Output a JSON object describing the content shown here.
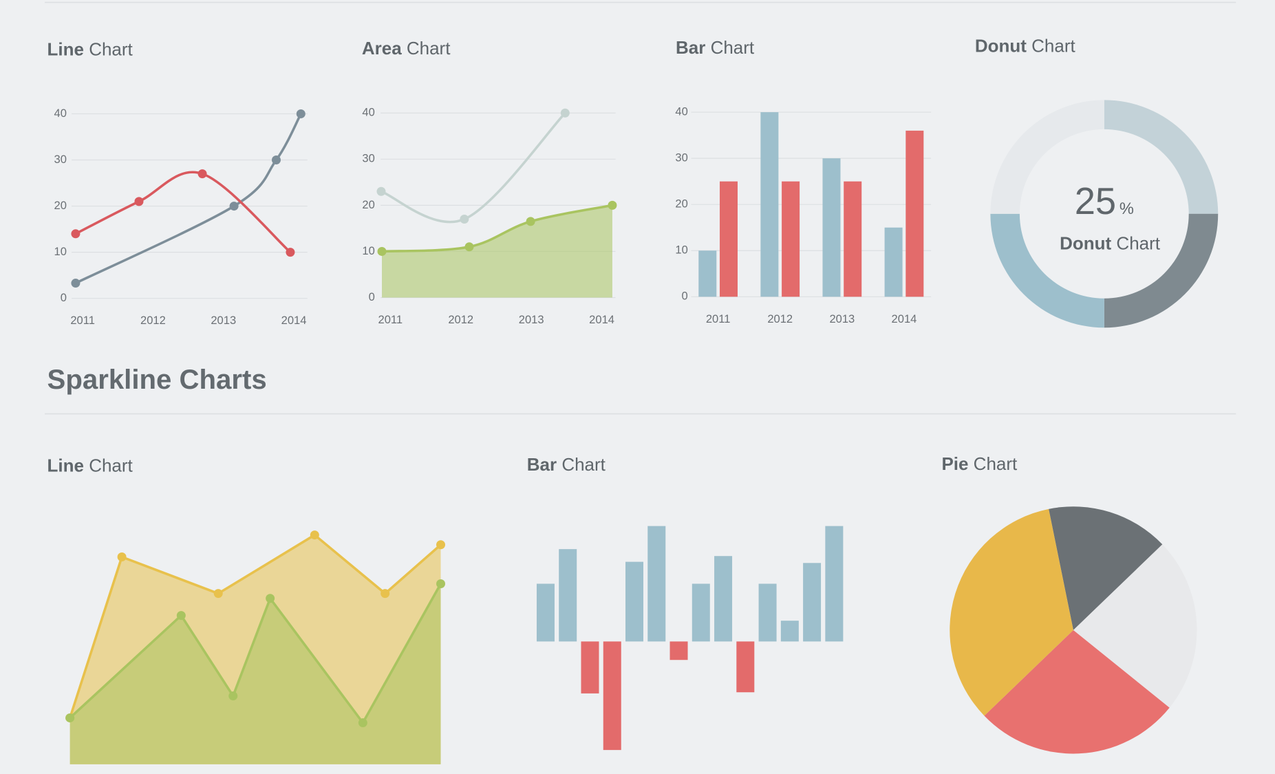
{
  "heading": "Sparkline Charts",
  "chart_data": [
    {
      "type": "line",
      "title": "Line Chart",
      "smooth": true,
      "grid": true,
      "xlim": [
        2010.75,
        2014.25
      ],
      "xticks": [
        2011,
        2012,
        2013,
        2014
      ],
      "ylim": [
        0,
        40
      ],
      "yticks": [
        0,
        10,
        20,
        30,
        40
      ],
      "series": [
        {
          "color": "#7d8e99",
          "x": [
            2010.9,
            2013.15,
            2013.75,
            2014.1
          ],
          "values": [
            3.3,
            20,
            30,
            40
          ]
        },
        {
          "color": "#d9595e",
          "x": [
            2010.9,
            2011.8,
            2012.7,
            2013.95
          ],
          "values": [
            14,
            21,
            27,
            10
          ]
        }
      ]
    },
    {
      "type": "area",
      "title": "Area Chart",
      "smooth": true,
      "grid": true,
      "xlim": [
        2010.8,
        2014.2
      ],
      "xticks": [
        2011,
        2012,
        2013,
        2014
      ],
      "ylim": [
        0,
        40
      ],
      "yticks": [
        0,
        10,
        20,
        30,
        40
      ],
      "series": [
        {
          "color": "#c5d3d0",
          "filled": false,
          "x": [
            2010.87,
            2012.05,
            2013.48
          ],
          "values": [
            23,
            17,
            40
          ]
        },
        {
          "color": "#a9c460",
          "filled": true,
          "x": [
            2010.88,
            2012.12,
            2012.99,
            2014.15
          ],
          "values": [
            10,
            11,
            16.5,
            20
          ]
        }
      ]
    },
    {
      "type": "bar",
      "title": "Bar Chart",
      "grid": true,
      "categories": [
        "2011",
        "2012",
        "2013",
        "2014"
      ],
      "ylim": [
        0,
        40
      ],
      "yticks": [
        0,
        10,
        20,
        30,
        40
      ],
      "series": [
        {
          "color": "#9dbfcc",
          "values": [
            10,
            40,
            30,
            15
          ]
        },
        {
          "color": "#e36b6b",
          "values": [
            25,
            25,
            25,
            36
          ]
        }
      ]
    },
    {
      "type": "donut",
      "title": "Donut Chart",
      "values": [
        25,
        25,
        25,
        25
      ],
      "colors": [
        "#c3d2d8",
        "#7f8a90",
        "#9dbfcc",
        "#e6e9ec"
      ],
      "center_value": 25,
      "center_unit": "%",
      "center_label": "Donut Chart"
    },
    {
      "type": "area",
      "title": "Line Chart",
      "smooth": false,
      "grid": false,
      "xlim": [
        0,
        100
      ],
      "ylim": [
        0,
        100
      ],
      "series": [
        {
          "color": "#e8c14c",
          "filled": true,
          "x": [
            0,
            14,
            40,
            66,
            85,
            100
          ],
          "values": [
            19,
            85,
            70,
            94,
            70,
            90
          ]
        },
        {
          "color": "#a9c460",
          "filled": true,
          "x": [
            0,
            30,
            44,
            54,
            79,
            100
          ],
          "values": [
            19,
            61,
            28,
            68,
            17,
            74
          ]
        }
      ]
    },
    {
      "type": "bar",
      "title": "Bar Chart",
      "ylim": [
        -100,
        100
      ],
      "values": [
        50,
        80,
        -45,
        -94,
        69,
        100,
        -16,
        50,
        74,
        -44,
        50,
        18,
        68,
        100
      ],
      "positive_color": "#9dbfcc",
      "negative_color": "#e36b6b"
    },
    {
      "type": "pie",
      "title": "Pie Chart",
      "values": [
        16,
        23,
        27,
        34
      ],
      "colors": [
        "#6b7175",
        "#e8e9eb",
        "#e8716f",
        "#e8b84a"
      ]
    }
  ]
}
